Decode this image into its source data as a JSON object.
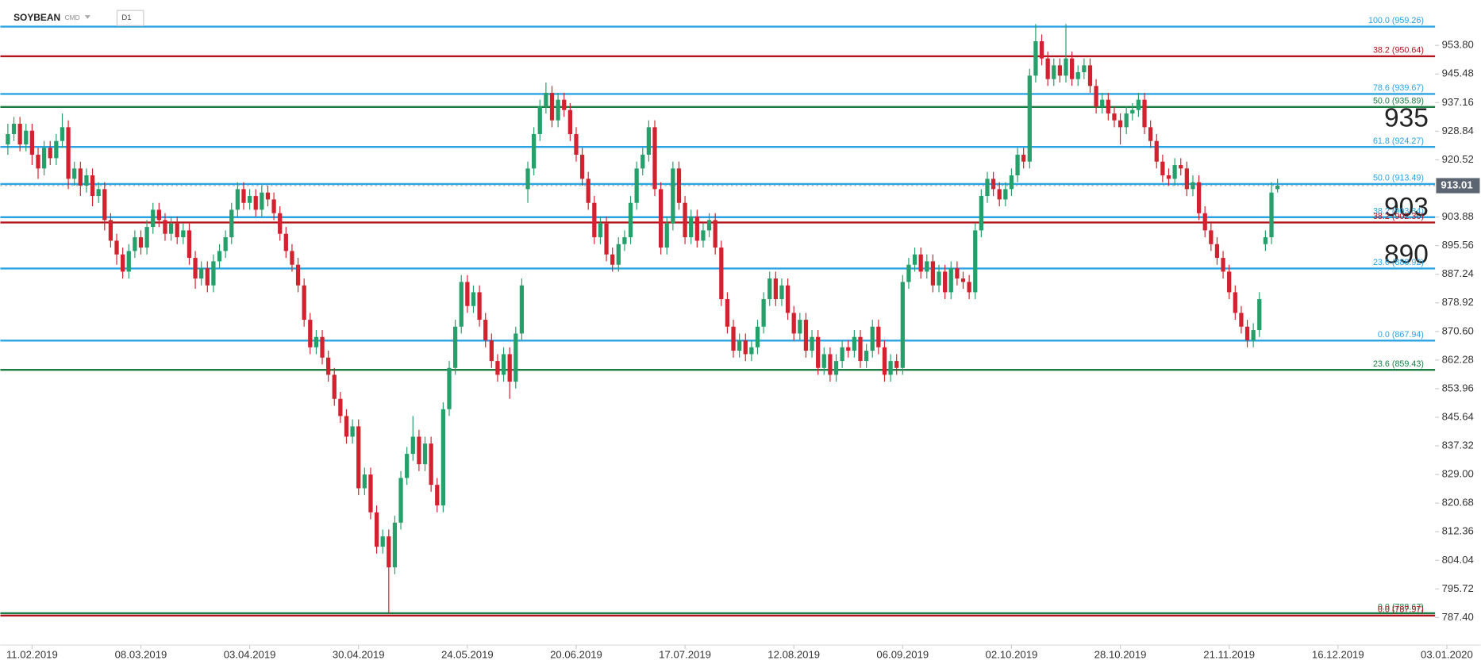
{
  "chart_data": {
    "type": "candlestick",
    "symbol": "SOYBEAN",
    "market": "CMD",
    "timeframe": "D1",
    "up_color": "#26a06a",
    "down_color": "#d4212f",
    "ylim": [
      779.4,
      967.0
    ],
    "yticks": [
      {
        "value": 953.8,
        "label": "953.80"
      },
      945.48,
      937.16,
      928.84,
      920.52,
      903.88,
      895.56,
      887.24,
      878.92,
      {
        "value": 870.6,
        "label": "870.60"
      },
      862.28,
      853.96,
      845.64,
      837.32,
      {
        "value": 829,
        "label": "829.00"
      },
      820.68,
      812.36,
      804.04,
      795.72,
      {
        "value": 787.4,
        "label": "787.40"
      }
    ],
    "xlim": [
      0,
      240
    ],
    "xticks": [
      {
        "value": 4,
        "label": "11.02.2019"
      },
      {
        "value": 22,
        "label": "08.03.2019"
      },
      {
        "value": 40,
        "label": "03.04.2019"
      },
      {
        "value": 58,
        "label": "30.04.2019"
      },
      {
        "value": 76,
        "label": "24.05.2019"
      },
      {
        "value": 94,
        "label": "20.06.2019"
      },
      {
        "value": 112,
        "label": "17.07.2019"
      },
      {
        "value": 130,
        "label": "12.08.2019"
      },
      {
        "value": 148,
        "label": "06.09.2019"
      },
      {
        "value": 166,
        "label": "02.10.2019"
      },
      {
        "value": 184,
        "label": "28.10.2019"
      },
      {
        "value": 202,
        "label": "21.11.2019"
      },
      {
        "value": 220,
        "label": "16.12.2019"
      },
      {
        "value": 238,
        "label": "03.01.2020"
      }
    ],
    "last_price": 913.01,
    "levels": [
      {
        "value": 959.26,
        "label": "100.0 (959.26)",
        "color": "#2aa3e2"
      },
      {
        "value": 950.64,
        "label": "38.2 (950.64)",
        "color": "#b3131c"
      },
      {
        "value": 939.67,
        "label": "78.6 (939.67)",
        "color": "#2aa3e2"
      },
      {
        "value": 935.89,
        "label": "50.0 (935.89)",
        "color": "#1b7d43"
      },
      {
        "value": 924.27,
        "label": "61.8 (924.27)",
        "color": "#2aa3e2"
      },
      {
        "value": 913.49,
        "label": "50.0 (913.49)",
        "color": "#2aa3e2"
      },
      {
        "value": 903.84,
        "label": "38.2 (903.84)",
        "color": "#2aa3e2"
      },
      {
        "value": 902.3,
        "label": "38.2 (902.30)",
        "color": "#b3131c"
      },
      {
        "value": 888.92,
        "label": "23.6 (888.92)",
        "color": "#2aa3e2"
      },
      {
        "value": 867.94,
        "label": "0.0 (867.94)",
        "color": "#2aa3e2"
      },
      {
        "value": 859.43,
        "label": "23.6 (859.43)",
        "color": "#1b7d43"
      },
      {
        "value": 788.67,
        "label": "0.0 (788.67)",
        "color": "#1b7d43"
      },
      {
        "value": 787.97,
        "label": "0.0 (787.97)",
        "color": "#b3131c"
      }
    ],
    "annotations": [
      "935",
      "903",
      "890"
    ],
    "candles": [
      [
        925,
        931,
        922,
        928
      ],
      [
        928,
        933,
        926,
        931
      ],
      [
        931,
        933,
        923,
        925
      ],
      [
        925,
        931,
        923,
        929
      ],
      [
        929,
        931,
        919,
        922
      ],
      [
        922,
        924,
        915,
        918
      ],
      [
        918,
        926,
        916,
        924
      ],
      [
        924,
        926,
        919,
        921
      ],
      [
        921,
        928,
        919,
        926
      ],
      [
        926,
        934,
        924,
        930
      ],
      [
        930,
        932,
        912,
        915
      ],
      [
        915,
        920,
        913,
        918
      ],
      [
        918,
        920,
        910,
        913
      ],
      [
        913,
        918,
        911,
        916
      ],
      [
        916,
        918,
        907,
        910
      ],
      [
        910,
        914,
        908,
        912
      ],
      [
        912,
        914,
        900,
        903
      ],
      [
        903,
        905,
        895,
        897
      ],
      [
        897,
        899,
        890,
        893
      ],
      [
        893,
        895,
        886,
        888
      ],
      [
        888,
        896,
        886,
        894
      ],
      [
        894,
        900,
        892,
        898
      ],
      [
        898,
        900,
        893,
        895
      ],
      [
        895,
        903,
        893,
        901
      ],
      [
        901,
        908,
        899,
        906
      ],
      [
        906,
        908,
        901,
        903
      ],
      [
        903,
        905,
        897,
        899
      ],
      [
        899,
        904,
        897,
        902
      ],
      [
        902,
        904,
        896,
        898
      ],
      [
        898,
        902,
        896,
        900
      ],
      [
        900,
        902,
        890,
        892
      ],
      [
        892,
        894,
        883,
        886
      ],
      [
        886,
        891,
        884,
        889
      ],
      [
        889,
        891,
        882,
        884
      ],
      [
        884,
        893,
        882,
        891
      ],
      [
        891,
        896,
        889,
        894
      ],
      [
        894,
        900,
        892,
        898
      ],
      [
        898,
        908,
        896,
        906
      ],
      [
        906,
        914,
        904,
        912
      ],
      [
        912,
        914,
        906,
        908
      ],
      [
        908,
        912,
        906,
        910
      ],
      [
        910,
        912,
        904,
        906
      ],
      [
        906,
        913,
        904,
        911
      ],
      [
        911,
        913,
        907,
        909
      ],
      [
        909,
        911,
        903,
        905
      ],
      [
        905,
        907,
        897,
        899
      ],
      [
        899,
        901,
        892,
        894
      ],
      [
        894,
        896,
        888,
        890
      ],
      [
        890,
        892,
        882,
        884
      ],
      [
        884,
        886,
        872,
        874
      ],
      [
        874,
        876,
        864,
        866
      ],
      [
        866,
        871,
        864,
        869
      ],
      [
        869,
        871,
        861,
        863
      ],
      [
        863,
        865,
        856,
        858
      ],
      [
        858,
        860,
        849,
        851
      ],
      [
        851,
        853,
        844,
        846
      ],
      [
        846,
        848,
        838,
        840
      ],
      [
        840,
        845,
        838,
        843
      ],
      [
        843,
        845,
        823,
        825
      ],
      [
        825,
        831,
        823,
        829
      ],
      [
        829,
        831,
        816,
        818
      ],
      [
        818,
        820,
        806,
        808
      ],
      [
        808,
        813,
        806,
        811
      ],
      [
        811,
        813,
        788.6,
        802
      ],
      [
        802,
        817,
        800,
        815
      ],
      [
        815,
        830,
        813,
        828
      ],
      [
        828,
        837,
        826,
        835
      ],
      [
        835,
        846,
        833,
        840
      ],
      [
        840,
        842,
        830,
        832
      ],
      [
        832,
        840,
        830,
        838
      ],
      [
        838,
        840,
        824,
        826
      ],
      [
        826,
        828,
        818,
        820
      ],
      [
        820,
        850,
        818,
        848
      ],
      [
        848,
        862,
        846,
        860
      ],
      [
        860,
        874,
        858,
        872
      ],
      [
        872,
        887,
        870,
        885
      ],
      [
        885,
        887,
        876,
        878
      ],
      [
        878,
        884,
        876,
        882
      ],
      [
        882,
        884,
        872,
        874
      ],
      [
        874,
        876,
        866,
        868
      ],
      [
        868,
        870,
        860,
        862
      ],
      [
        862,
        864,
        856,
        858
      ],
      [
        858,
        866,
        856,
        864
      ],
      [
        864,
        866,
        851,
        856
      ],
      [
        856,
        872,
        854,
        870
      ],
      [
        870,
        886,
        868,
        884
      ],
      [
        912,
        920,
        908,
        918
      ],
      [
        918,
        930,
        916,
        928
      ],
      [
        928,
        938,
        926,
        936
      ],
      [
        936,
        943,
        934,
        940
      ],
      [
        940,
        942,
        930,
        932
      ],
      [
        932,
        940,
        930,
        938
      ],
      [
        938,
        940,
        933,
        935
      ],
      [
        935,
        937,
        926,
        928
      ],
      [
        928,
        930,
        920,
        922
      ],
      [
        922,
        924,
        913,
        915
      ],
      [
        915,
        917,
        906,
        908
      ],
      [
        908,
        910,
        896,
        898
      ],
      [
        898,
        904,
        896,
        902
      ],
      [
        902,
        904,
        891,
        893
      ],
      [
        893,
        895,
        888,
        890
      ],
      [
        890,
        898,
        888,
        896
      ],
      [
        896,
        900,
        894,
        898
      ],
      [
        898,
        910,
        896,
        908
      ],
      [
        908,
        920,
        906,
        918
      ],
      [
        918,
        924,
        916,
        922
      ],
      [
        922,
        932,
        920,
        930
      ],
      [
        930,
        932,
        910,
        912
      ],
      [
        912,
        914,
        893,
        895
      ],
      [
        895,
        904,
        893,
        902
      ],
      [
        902,
        920,
        900,
        918
      ],
      [
        918,
        920,
        906,
        908
      ],
      [
        908,
        910,
        896,
        898
      ],
      [
        898,
        906,
        896,
        904
      ],
      [
        904,
        906,
        895,
        897
      ],
      [
        897,
        902,
        895,
        900
      ],
      [
        900,
        905,
        898,
        903
      ],
      [
        903,
        905,
        893,
        895
      ],
      [
        895,
        897,
        878,
        880
      ],
      [
        880,
        882,
        870,
        872
      ],
      [
        872,
        874,
        863,
        865
      ],
      [
        865,
        870,
        863,
        868
      ],
      [
        868,
        870,
        862,
        864
      ],
      [
        864,
        868,
        862,
        866
      ],
      [
        866,
        874,
        864,
        872
      ],
      [
        872,
        882,
        870,
        880
      ],
      [
        880,
        888,
        878,
        886
      ],
      [
        886,
        888,
        878,
        880
      ],
      [
        880,
        886,
        878,
        884
      ],
      [
        884,
        886,
        874,
        876
      ],
      [
        876,
        878,
        868,
        870
      ],
      [
        870,
        876,
        868,
        874
      ],
      [
        874,
        876,
        863,
        865
      ],
      [
        865,
        871,
        863,
        869
      ],
      [
        869,
        871,
        858,
        860
      ],
      [
        860,
        866,
        858,
        864
      ],
      [
        864,
        866,
        856,
        858
      ],
      [
        858,
        864,
        856,
        862
      ],
      [
        862,
        868,
        860,
        866
      ],
      [
        866,
        868,
        863,
        865
      ],
      [
        865,
        871,
        863,
        869
      ],
      [
        869,
        871,
        860,
        862
      ],
      [
        862,
        867,
        860,
        865
      ],
      [
        865,
        874,
        863,
        872
      ],
      [
        872,
        874,
        864,
        866
      ],
      [
        866,
        868,
        856,
        858
      ],
      [
        858,
        864,
        856,
        862
      ],
      [
        862,
        864,
        858,
        860
      ],
      [
        860,
        887,
        858,
        885
      ],
      [
        885,
        892,
        883,
        890
      ],
      [
        890,
        895,
        888,
        893
      ],
      [
        893,
        895,
        886,
        888
      ],
      [
        888,
        893,
        886,
        891
      ],
      [
        891,
        893,
        882,
        884
      ],
      [
        884,
        890,
        882,
        888
      ],
      [
        888,
        890,
        880,
        882
      ],
      [
        882,
        891,
        880,
        889
      ],
      [
        889,
        891,
        884,
        886
      ],
      [
        886,
        888,
        883,
        885
      ],
      [
        885,
        887,
        880,
        882
      ],
      [
        882,
        902,
        880,
        900
      ],
      [
        900,
        912,
        898,
        910
      ],
      [
        910,
        917,
        908,
        915
      ],
      [
        915,
        917,
        910,
        912
      ],
      [
        912,
        914,
        907,
        909
      ],
      [
        909,
        914,
        907,
        912
      ],
      [
        912,
        918,
        910,
        916
      ],
      [
        916,
        924,
        914,
        922
      ],
      [
        922,
        924,
        918,
        920
      ],
      [
        920,
        947,
        918,
        945
      ],
      [
        945,
        960,
        943,
        955
      ],
      [
        955,
        957,
        948,
        950
      ],
      [
        950,
        952,
        942,
        944
      ],
      [
        944,
        950,
        942,
        948
      ],
      [
        948,
        950,
        943,
        945
      ],
      [
        945,
        960,
        943,
        950
      ],
      [
        950,
        952,
        942,
        944
      ],
      [
        944,
        948,
        942,
        946
      ],
      [
        946,
        950,
        944,
        948
      ],
      [
        948,
        950,
        940,
        942
      ],
      [
        942,
        944,
        934,
        936
      ],
      [
        936,
        940,
        934,
        938
      ],
      [
        938,
        940,
        932,
        934
      ],
      [
        934,
        936,
        930,
        932
      ],
      [
        932,
        934,
        925,
        930
      ],
      [
        930,
        936,
        928,
        934
      ],
      [
        934,
        937,
        932,
        935
      ],
      [
        935,
        940,
        933,
        938
      ],
      [
        938,
        940,
        928,
        930
      ],
      [
        930,
        932,
        924,
        926
      ],
      [
        926,
        928,
        918,
        920
      ],
      [
        920,
        922,
        914,
        916
      ],
      [
        916,
        918,
        913,
        915
      ],
      [
        915,
        921,
        913,
        919
      ],
      [
        919,
        921,
        916,
        918
      ],
      [
        918,
        920,
        910,
        912
      ],
      [
        912,
        916,
        910,
        914
      ],
      [
        914,
        916,
        903,
        905
      ],
      [
        905,
        907,
        898,
        900
      ],
      [
        900,
        902,
        894,
        896
      ],
      [
        896,
        898,
        890,
        892
      ],
      [
        892,
        894,
        886,
        888
      ],
      [
        888,
        890,
        880,
        882
      ],
      [
        882,
        884,
        874,
        876
      ],
      [
        876,
        878,
        870,
        872
      ],
      [
        872,
        874,
        866,
        868
      ],
      [
        868,
        873,
        866,
        871
      ],
      [
        871,
        882,
        869,
        880
      ],
      [
        896,
        900,
        894,
        898
      ],
      [
        898,
        914,
        896,
        911
      ],
      [
        912,
        915,
        911,
        913.01
      ]
    ]
  }
}
